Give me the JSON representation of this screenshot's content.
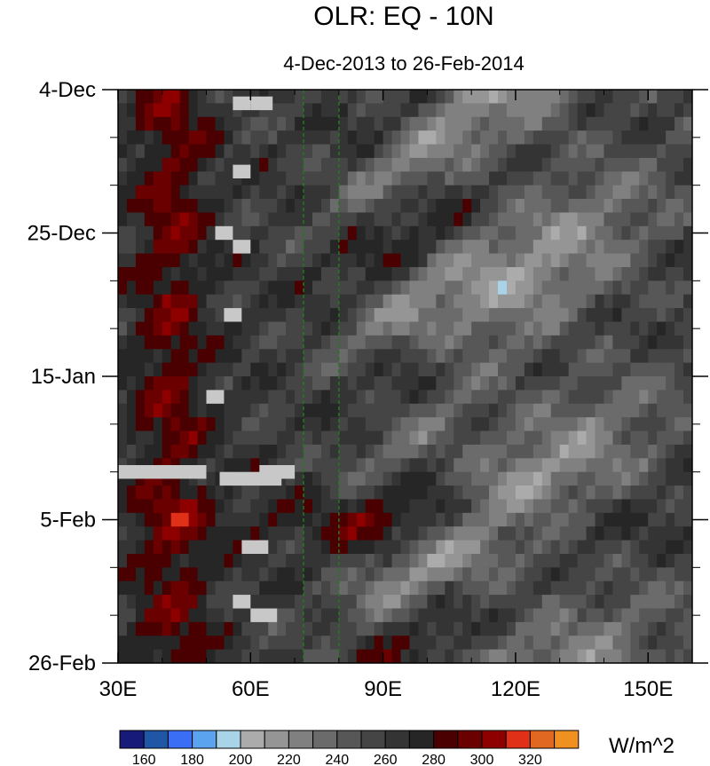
{
  "chart_data": {
    "type": "heatmap",
    "title": "OLR: EQ - 10N",
    "subtitle": "4-Dec-2013 to 26-Feb-2014",
    "x_tick_labels": [
      "30E",
      "60E",
      "90E",
      "120E",
      "150E"
    ],
    "x_tick_values": [
      30,
      60,
      90,
      120,
      150
    ],
    "x_range": [
      30,
      160
    ],
    "y_tick_labels": [
      "4-Dec",
      "25-Dec",
      "15-Jan",
      "5-Feb",
      "26-Feb"
    ],
    "y_tick_values": [
      "2013-12-04",
      "2013-12-25",
      "2014-01-15",
      "2014-02-05",
      "2014-02-26"
    ],
    "y_range": [
      "2013-12-04",
      "2014-02-26"
    ],
    "reference_lines": [
      {
        "x": 72,
        "style": "dashed",
        "color": "#1f7a1f"
      },
      {
        "x": 80,
        "style": "dashed",
        "color": "#1f7a1f"
      }
    ],
    "colorbar": {
      "units": "W/m^2",
      "labels": [
        "160",
        "180",
        "200",
        "220",
        "240",
        "260",
        "280",
        "300",
        "320"
      ],
      "levels": [
        150,
        160,
        170,
        180,
        190,
        200,
        210,
        220,
        230,
        240,
        250,
        260,
        270,
        280,
        290,
        300,
        310,
        320,
        330
      ],
      "colors": [
        "#181a7a",
        "#1f56a6",
        "#3a6ff5",
        "#5ba3ee",
        "#a9d4e8",
        "#ababab",
        "#959595",
        "#808080",
        "#6b6b6b",
        "#575757",
        "#454545",
        "#343434",
        "#262626",
        "#4a0000",
        "#6a0000",
        "#8e0000",
        "#e03018",
        "#e06820",
        "#f09020"
      ]
    },
    "missing_color": "#c8c8c8"
  }
}
